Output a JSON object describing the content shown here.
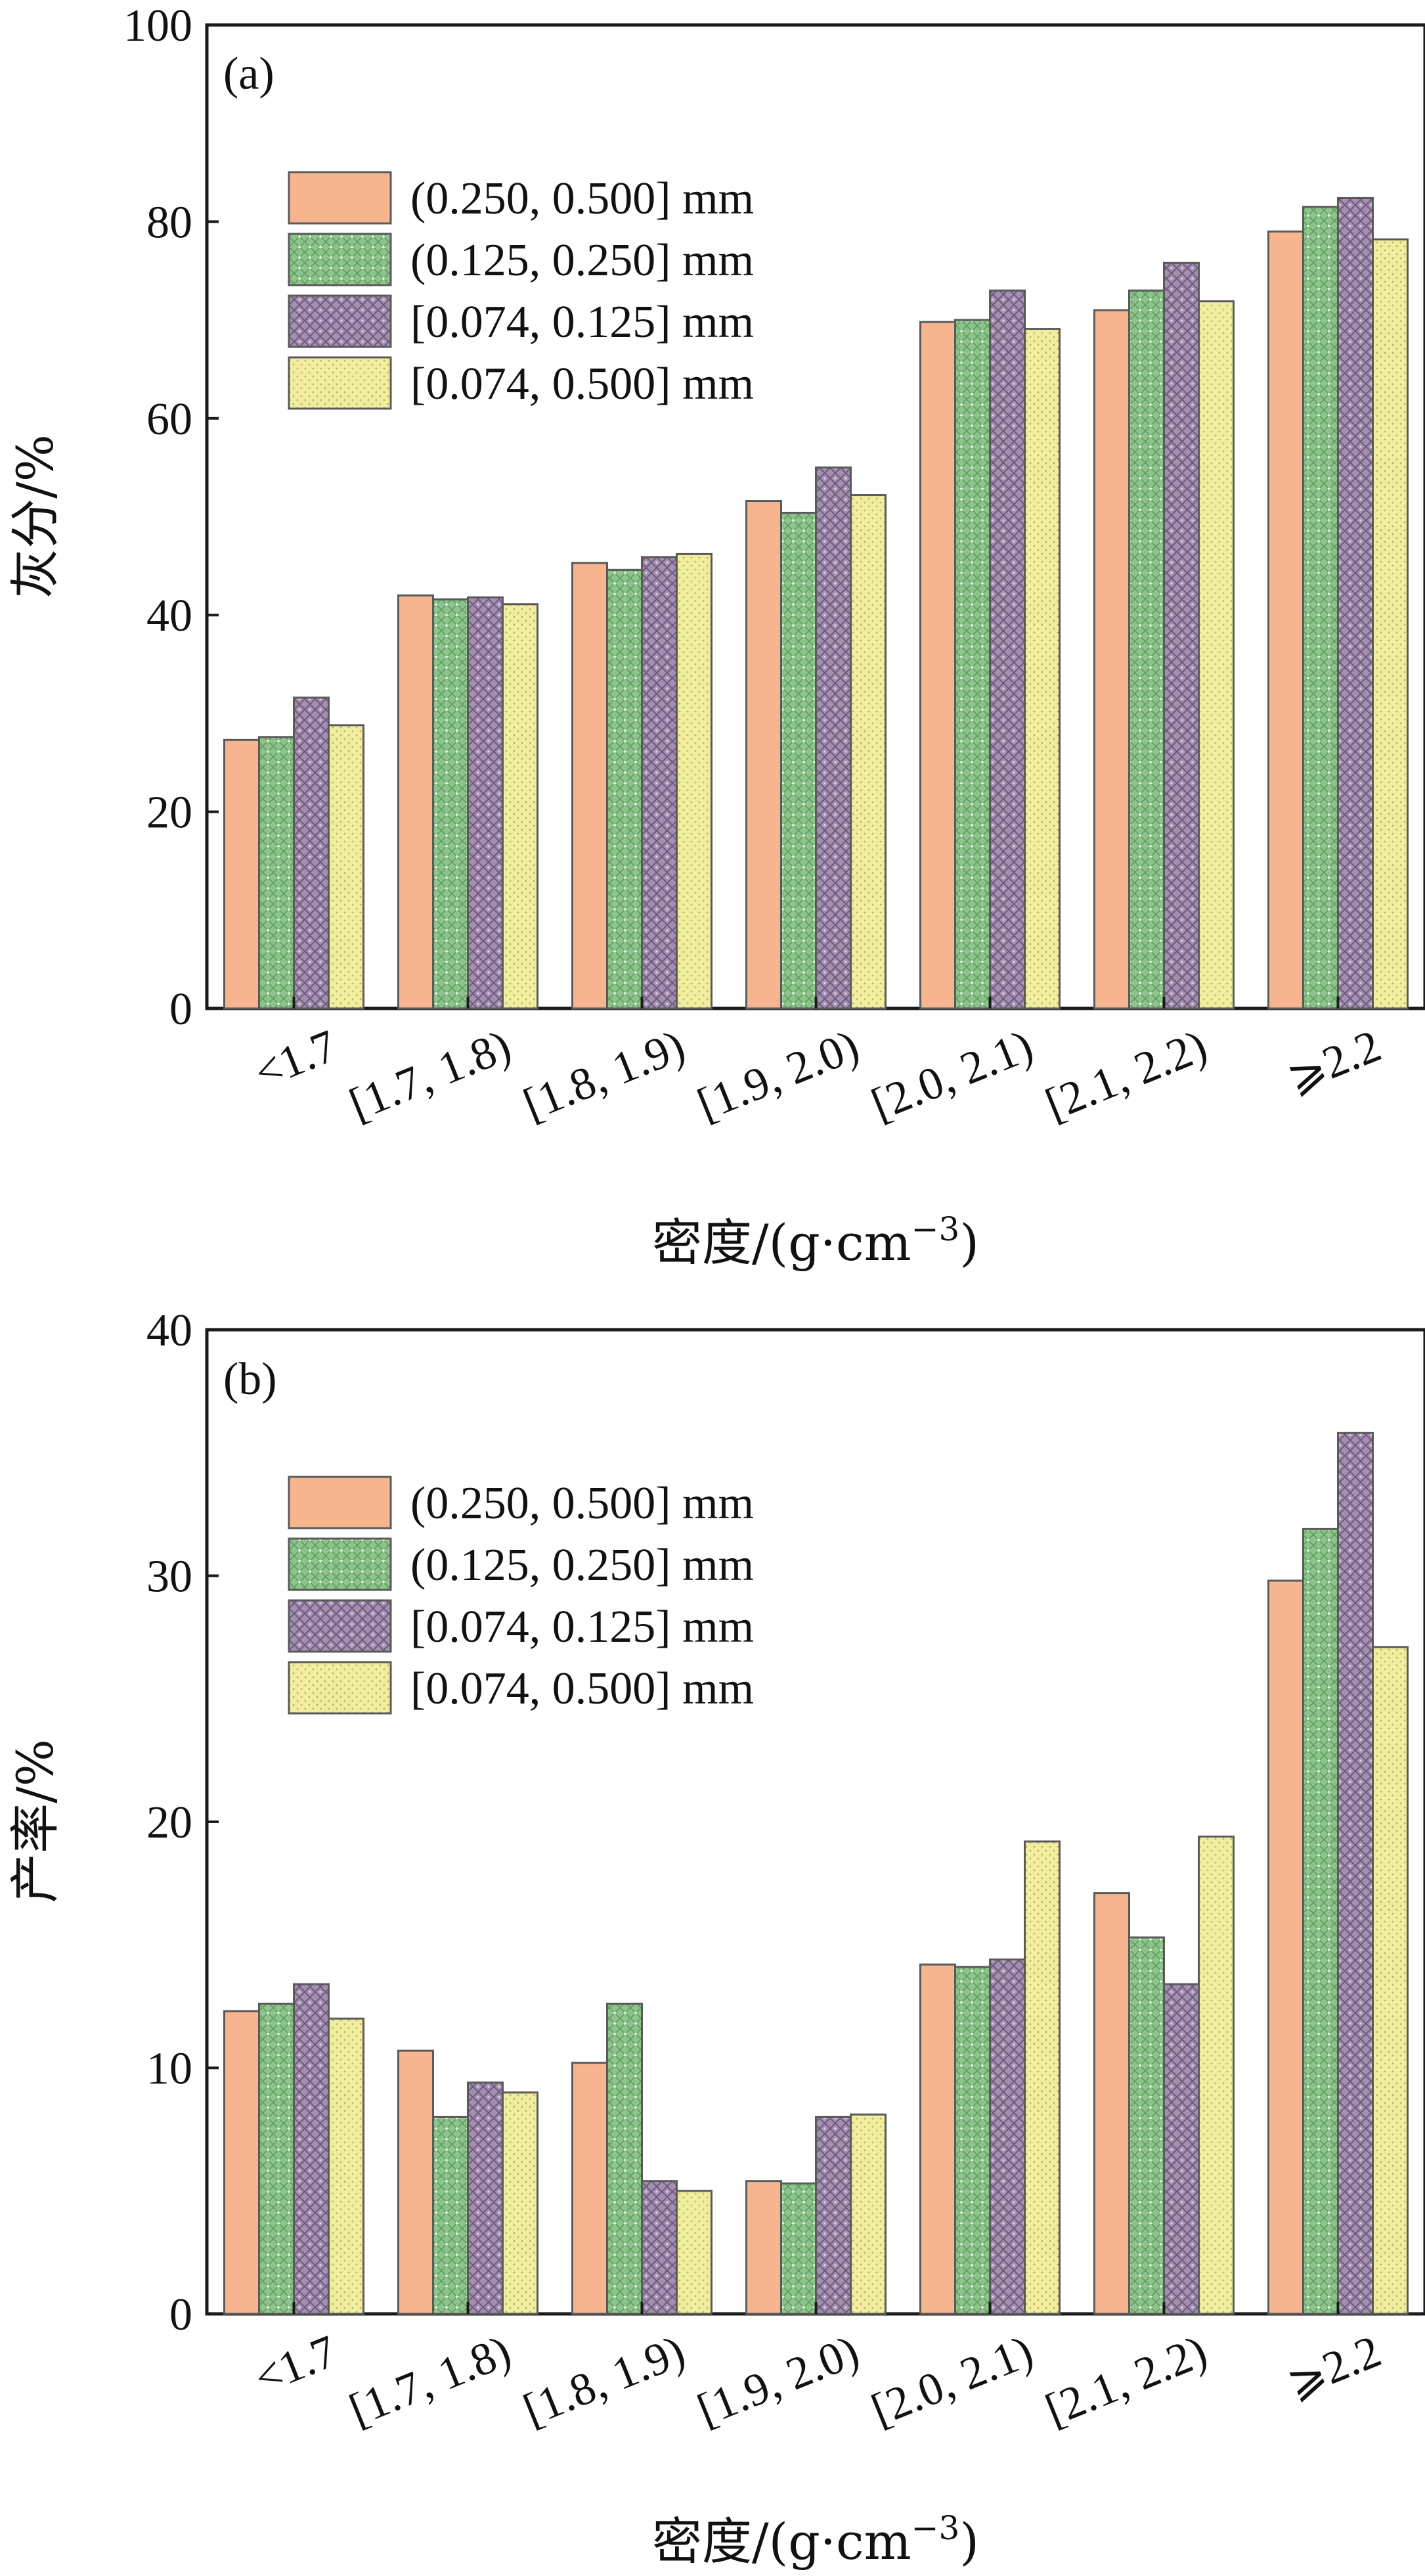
{
  "chart_data": [
    {
      "type": "bar",
      "panel_label": "(a)",
      "title": "",
      "xlabel_main": "密度/(g·cm",
      "xlabel_sup": "−3",
      "xlabel_close": ")",
      "ylabel": "灰分/%",
      "ylim": [
        0,
        100
      ],
      "yticks": [
        0,
        20,
        40,
        60,
        80,
        100
      ],
      "categories": [
        "<1.7",
        "[1.7, 1.8)",
        "[1.8, 1.9)",
        "[1.9, 2.0)",
        "[2.0, 2.1)",
        "[2.1, 2.2)",
        "⩾2.2"
      ],
      "legend_position": "upper-left",
      "series": [
        {
          "name": "(0.250, 0.500] mm",
          "color": "#f6b48f",
          "pattern": "solid",
          "values": [
            27.3,
            42.0,
            45.3,
            51.6,
            69.8,
            71.0,
            79.0
          ]
        },
        {
          "name": "(0.125, 0.250] mm",
          "color": "#8cc48c",
          "pattern": "cross",
          "values": [
            27.6,
            41.6,
            44.6,
            50.4,
            70.0,
            73.0,
            81.5
          ]
        },
        {
          "name": "[0.074, 0.125] mm",
          "color": "#a48fb0",
          "pattern": "diamond",
          "values": [
            31.6,
            41.8,
            45.9,
            55.0,
            73.0,
            75.8,
            82.4
          ]
        },
        {
          "name": "[0.074, 0.500] mm",
          "color": "#f2eea0",
          "pattern": "dots",
          "values": [
            28.8,
            41.1,
            46.2,
            52.2,
            69.1,
            71.9,
            78.2
          ]
        }
      ]
    },
    {
      "type": "bar",
      "panel_label": "(b)",
      "title": "",
      "xlabel_main": "密度/(g·cm",
      "xlabel_sup": "−3",
      "xlabel_close": ")",
      "ylabel": "产率/%",
      "ylim": [
        0,
        40
      ],
      "yticks": [
        0,
        10,
        20,
        30,
        40
      ],
      "categories": [
        "<1.7",
        "[1.7, 1.8)",
        "[1.8, 1.9)",
        "[1.9, 2.0)",
        "[2.0, 2.1)",
        "[2.1, 2.2)",
        "⩾2.2"
      ],
      "legend_position": "upper-left",
      "series": [
        {
          "name": "(0.250, 0.500] mm",
          "color": "#f6b48f",
          "pattern": "solid",
          "values": [
            12.3,
            10.7,
            10.2,
            5.4,
            14.2,
            17.1,
            29.8
          ]
        },
        {
          "name": "(0.125, 0.250] mm",
          "color": "#8cc48c",
          "pattern": "cross",
          "values": [
            12.6,
            8.0,
            12.6,
            5.3,
            14.1,
            15.3,
            31.9
          ]
        },
        {
          "name": "[0.074, 0.125] mm",
          "color": "#a48fb0",
          "pattern": "diamond",
          "values": [
            13.4,
            9.4,
            5.4,
            8.0,
            14.4,
            13.4,
            35.8
          ]
        },
        {
          "name": "[0.074, 0.500] mm",
          "color": "#f2eea0",
          "pattern": "dots",
          "values": [
            12.0,
            9.0,
            5.0,
            8.1,
            19.2,
            19.4,
            27.1
          ]
        }
      ]
    }
  ]
}
